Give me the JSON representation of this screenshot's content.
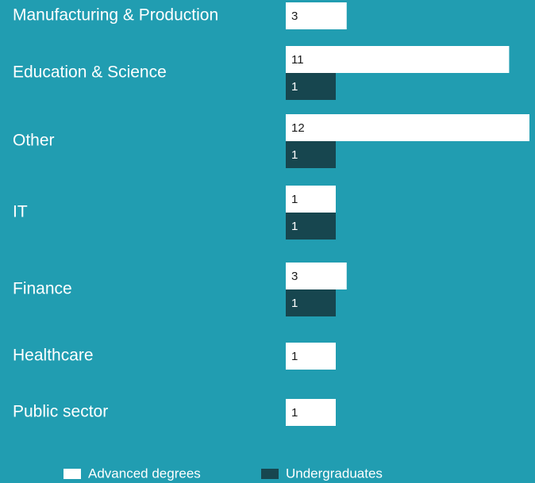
{
  "chart_data": {
    "type": "bar",
    "orientation": "horizontal",
    "categories": [
      "Manufacturing & Production",
      "Education & Science",
      "Other",
      "IT",
      "Finance",
      "Healthcare",
      "Public sector"
    ],
    "series": [
      {
        "name": "Advanced degrees",
        "color": "#ffffff",
        "values": [
          3,
          11,
          12,
          1,
          3,
          1,
          1
        ]
      },
      {
        "name": "Undergraduates",
        "color": "#17464f",
        "values": [
          null,
          1,
          1,
          1,
          1,
          null,
          null
        ]
      }
    ]
  }
}
